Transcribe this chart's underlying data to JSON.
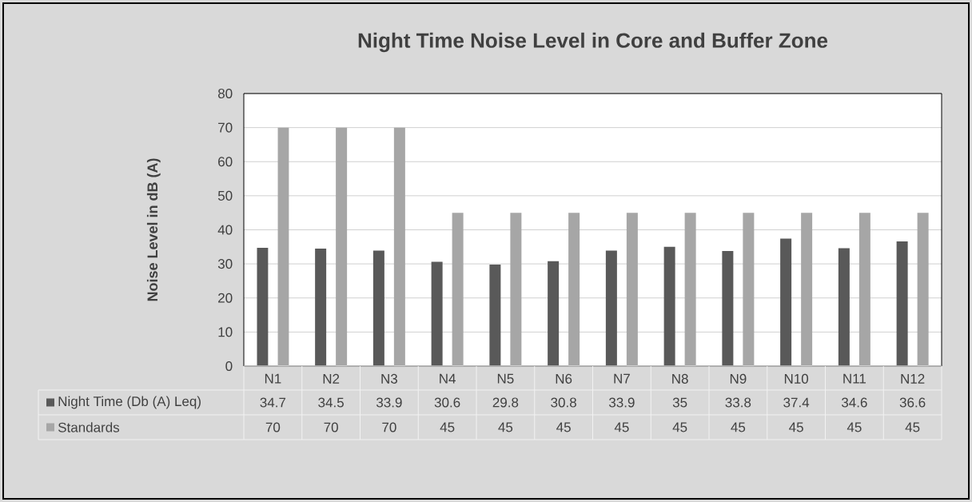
{
  "chart_data": {
    "type": "bar",
    "title": "Night Time Noise Level in Core and Buffer Zone",
    "ylabel": "Noise Level in dB (A)",
    "categories": [
      "N1",
      "N2",
      "N3",
      "N4",
      "N5",
      "N6",
      "N7",
      "N8",
      "N9",
      "N10",
      "N11",
      "N12"
    ],
    "series": [
      {
        "name": "Night Time (Db (A) Leq)",
        "color": "#595959",
        "values": [
          34.7,
          34.5,
          33.9,
          30.6,
          29.8,
          30.8,
          33.9,
          35,
          33.8,
          37.4,
          34.6,
          36.6
        ]
      },
      {
        "name": "Standards",
        "color": "#a6a6a6",
        "values": [
          70,
          70,
          70,
          45,
          45,
          45,
          45,
          45,
          45,
          45,
          45,
          45
        ]
      }
    ],
    "ylim": [
      0,
      80
    ],
    "yticks": [
      0,
      10,
      20,
      30,
      40,
      50,
      60,
      70,
      80
    ],
    "grid": "y",
    "legend": "bottom",
    "data_labels": true
  }
}
